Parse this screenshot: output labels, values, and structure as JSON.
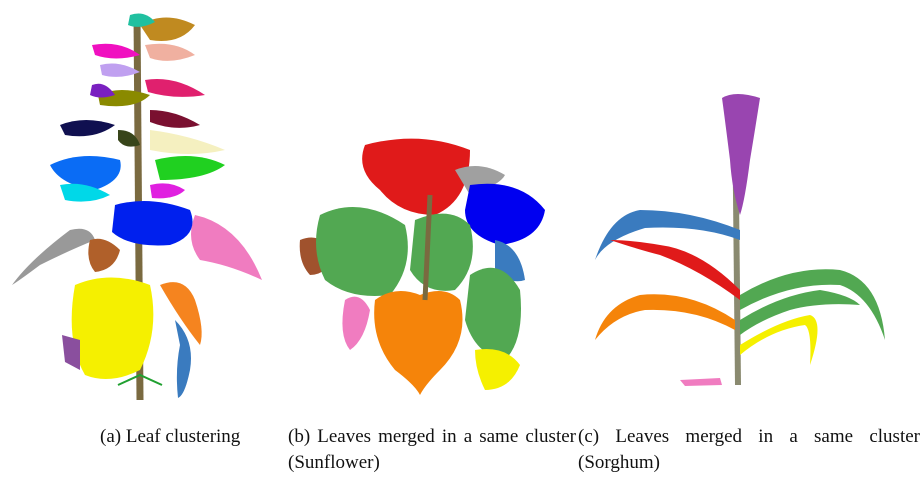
{
  "figure": {
    "panels": [
      {
        "caption": "(a) Leaf clustering"
      },
      {
        "caption": "(b) Leaves merged in a same cluster (Sunflower)"
      },
      {
        "caption": "(c) Leaves merged in a same cluster (Sorghum)"
      }
    ]
  }
}
